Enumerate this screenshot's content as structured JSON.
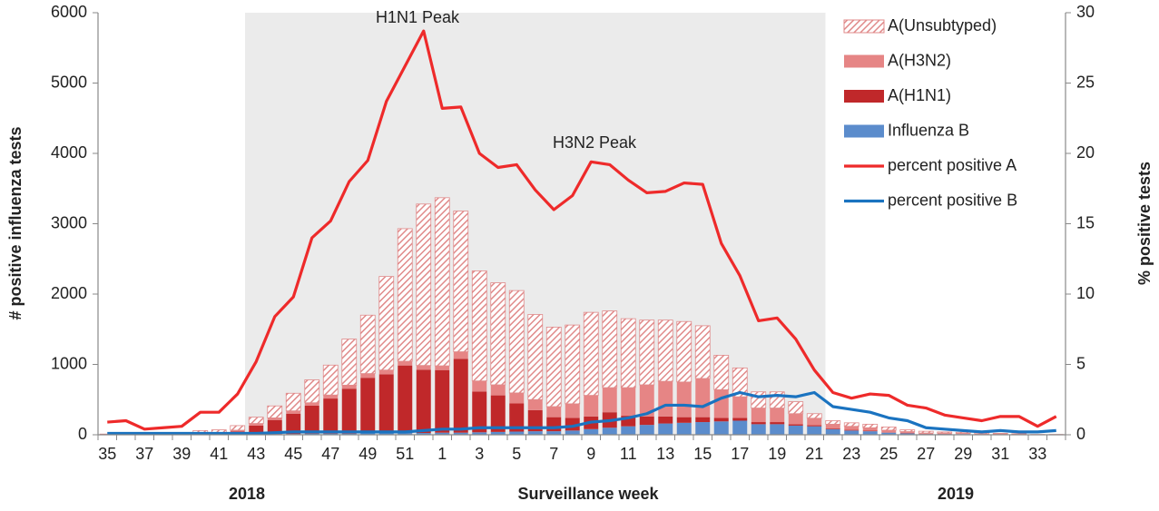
{
  "chart_data": {
    "type": "bar",
    "categories": [
      "35",
      null,
      "37",
      null,
      "39",
      null,
      "41",
      null,
      "43",
      null,
      "45",
      null,
      "47",
      null,
      "49",
      null,
      "51",
      null,
      "1",
      null,
      "3",
      null,
      "5",
      null,
      "7",
      null,
      "9",
      null,
      "11",
      null,
      "13",
      null,
      "15",
      null,
      "17",
      null,
      "19",
      null,
      "21",
      null,
      "23",
      null,
      "25",
      null,
      "27",
      null,
      "29",
      null,
      "31",
      null,
      "33",
      null
    ],
    "series": [
      {
        "name": "A(Unsubtyped)",
        "color": "#e69a9a",
        "type": "bar",
        "values": [
          5,
          5,
          10,
          15,
          15,
          35,
          45,
          65,
          90,
          170,
          250,
          325,
          425,
          655,
          830,
          1330,
          1885,
          2295,
          2390,
          2000,
          1565,
          1450,
          1455,
          1210,
          1130,
          1120,
          1180,
          1090,
          980,
          920,
          870,
          860,
          750,
          490,
          410,
          230,
          230,
          170,
          65,
          50,
          50,
          50,
          45,
          25,
          25,
          15,
          15,
          15,
          10,
          5,
          0,
          0
        ]
      },
      {
        "name": "A(H3N2)",
        "color": "#e68585",
        "type": "bar",
        "values": [
          0,
          0,
          0,
          0,
          5,
          10,
          10,
          20,
          30,
          30,
          40,
          40,
          50,
          50,
          60,
          60,
          60,
          60,
          60,
          100,
          150,
          150,
          150,
          150,
          150,
          200,
          300,
          350,
          400,
          450,
          500,
          500,
          550,
          400,
          300,
          200,
          200,
          150,
          100,
          60,
          50,
          40,
          30,
          20,
          10,
          10,
          10,
          10,
          5,
          5,
          5,
          5
        ]
      },
      {
        "name": "A(H1N1)",
        "color": "#c0282a",
        "type": "bar",
        "values": [
          0,
          0,
          0,
          0,
          5,
          10,
          10,
          40,
          120,
          200,
          290,
          400,
          500,
          640,
          790,
          840,
          960,
          900,
          890,
          1050,
          580,
          520,
          400,
          300,
          200,
          180,
          180,
          220,
          150,
          120,
          100,
          80,
          70,
          50,
          40,
          30,
          30,
          20,
          15,
          10,
          10,
          10,
          5,
          5,
          5,
          5,
          0,
          0,
          0,
          0,
          0,
          0
        ]
      },
      {
        "name": "Influenza B",
        "color": "#5b8ccc",
        "type": "bar",
        "values": [
          5,
          5,
          5,
          5,
          5,
          5,
          5,
          5,
          10,
          10,
          10,
          15,
          15,
          15,
          20,
          20,
          25,
          25,
          30,
          30,
          35,
          40,
          45,
          50,
          50,
          60,
          80,
          100,
          120,
          140,
          160,
          170,
          180,
          190,
          200,
          150,
          150,
          130,
          120,
          80,
          60,
          50,
          30,
          20,
          10,
          10,
          10,
          5,
          5,
          5,
          5,
          5
        ]
      },
      {
        "name": "percent positive A",
        "color": "#ee2a2a",
        "type": "line",
        "axis": "y2",
        "values": [
          0.9,
          1.0,
          0.4,
          0.5,
          0.6,
          1.6,
          1.6,
          2.9,
          5.2,
          8.4,
          9.8,
          14,
          15.2,
          18,
          19.5,
          23.7,
          26.2,
          28.7,
          23.2,
          23.3,
          20,
          19,
          19.2,
          17.4,
          16,
          17,
          19.4,
          19.2,
          18.1,
          17.2,
          17.3,
          17.9,
          17.8,
          13.6,
          11.3,
          8.1,
          8.3,
          6.8,
          4.6,
          3.0,
          2.6,
          2.9,
          2.8,
          2.1,
          1.9,
          1.4,
          1.2,
          1.0,
          1.3,
          1.3,
          0.6,
          1.3
        ]
      },
      {
        "name": "percent positive B",
        "color": "#1a73c0",
        "type": "line",
        "axis": "y2",
        "values": [
          0.1,
          0.1,
          0.1,
          0.1,
          0.1,
          0.1,
          0.1,
          0.1,
          0.1,
          0.15,
          0.2,
          0.2,
          0.2,
          0.2,
          0.2,
          0.2,
          0.2,
          0.3,
          0.4,
          0.4,
          0.5,
          0.5,
          0.5,
          0.5,
          0.5,
          0.6,
          0.9,
          1.0,
          1.2,
          1.5,
          2.1,
          2.1,
          2.0,
          2.6,
          3.0,
          2.7,
          2.8,
          2.7,
          3.0,
          2.0,
          1.8,
          1.6,
          1.2,
          1.0,
          0.5,
          0.4,
          0.3,
          0.2,
          0.3,
          0.2,
          0.2,
          0.3
        ]
      }
    ],
    "ylim": [
      0,
      6000
    ],
    "yticks": [
      0,
      1000,
      2000,
      3000,
      4000,
      5000,
      6000
    ],
    "y2lim": [
      0,
      30
    ],
    "y2ticks": [
      0,
      5,
      10,
      15,
      20,
      25,
      30
    ],
    "ylabel": "# positive influenza tests",
    "y2label": "% positive tests",
    "xlabel": "Surveillance week",
    "year_labels": [
      "2018",
      "2019"
    ],
    "annotations": [
      "H1N1 Peak",
      "H3N2 Peak"
    ],
    "legend": "top-right"
  }
}
